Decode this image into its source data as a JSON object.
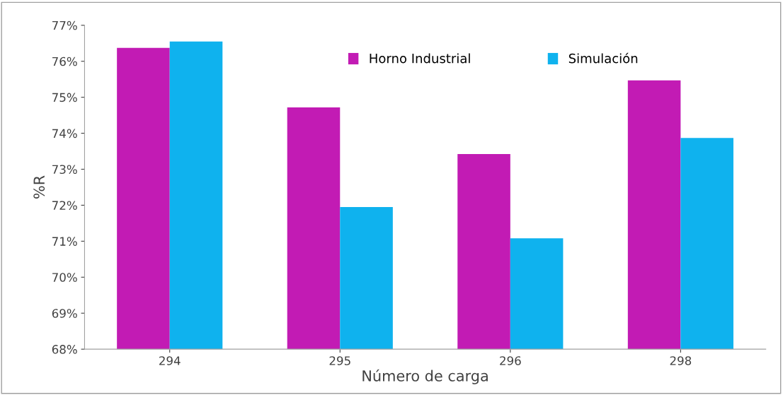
{
  "chart_data": {
    "type": "bar",
    "xlabel": "Número de carga",
    "ylabel": "%R",
    "categories": [
      "294",
      "295",
      "296",
      "298"
    ],
    "series": [
      {
        "name": "Horno Industrial",
        "color": "#c21bb4",
        "values": [
          76.37,
          74.72,
          73.42,
          75.47
        ]
      },
      {
        "name": "Simulación",
        "color": "#0fb2ee",
        "values": [
          76.55,
          71.95,
          71.08,
          73.87
        ]
      }
    ],
    "ylim": [
      68,
      77
    ],
    "yticks": [
      {
        "value": 68,
        "label": "68%"
      },
      {
        "value": 69,
        "label": "69%"
      },
      {
        "value": 70,
        "label": "70%"
      },
      {
        "value": 71,
        "label": "71%"
      },
      {
        "value": 72,
        "label": "72%"
      },
      {
        "value": 73,
        "label": "73%"
      },
      {
        "value": 74,
        "label": "74%"
      },
      {
        "value": 75,
        "label": "75%"
      },
      {
        "value": 76,
        "label": "76%"
      },
      {
        "value": 77,
        "label": "77%"
      }
    ],
    "grid": false,
    "legend": "top"
  }
}
